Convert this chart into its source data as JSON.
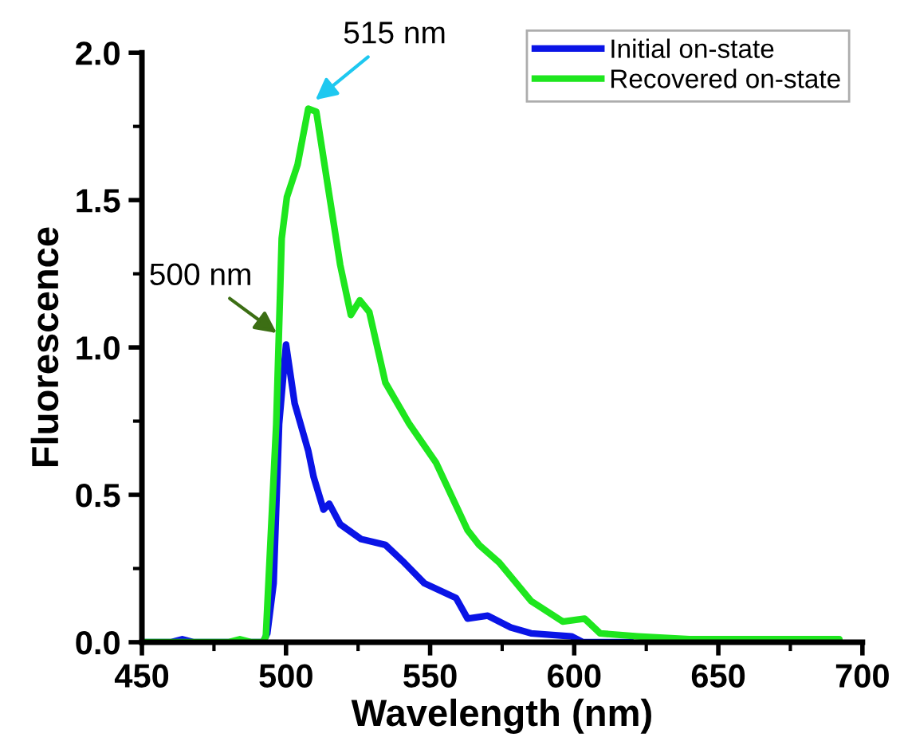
{
  "chart_data": {
    "type": "line",
    "xlabel": "Wavelength (nm)",
    "ylabel": "Fluorescence",
    "xlim": [
      450,
      700
    ],
    "ylim": [
      0,
      2.0
    ],
    "xticks": [
      450,
      500,
      550,
      600,
      650,
      700
    ],
    "yticks": [
      {
        "value": 0,
        "label": "0.0"
      },
      {
        "value": 0.5,
        "label": "0.5"
      },
      {
        "value": 1.0,
        "label": "1.0"
      },
      {
        "value": 1.5,
        "label": "1.5"
      },
      {
        "value": 2.0,
        "label": "2.0"
      }
    ],
    "grid": false,
    "legend": "top right",
    "marker": "none",
    "line_style": "solid",
    "annotations": [
      {
        "text": "515 nm",
        "x": 509,
        "y": 1.83
      },
      {
        "text": "500 nm",
        "x": 498,
        "y": 1.04
      }
    ],
    "series": [
      {
        "name": "Initial on-state",
        "color": "#0a14e6",
        "x": [
          450,
          460,
          464,
          468,
          480,
          492,
          493.5,
          495.7,
          497.6,
          500,
          503,
          507.7,
          509.6,
          513,
          515,
          518.8,
          526,
          534.5,
          541,
          548,
          559,
          563,
          570,
          578,
          585,
          599,
          603,
          620
        ],
        "values": [
          0,
          0,
          0.01,
          0,
          0,
          0,
          0.03,
          0.2,
          0.74,
          1.01,
          0.81,
          0.65,
          0.56,
          0.45,
          0.47,
          0.4,
          0.35,
          0.33,
          0.27,
          0.2,
          0.15,
          0.08,
          0.09,
          0.05,
          0.03,
          0.02,
          0,
          0
        ]
      },
      {
        "name": "Recovered on-state",
        "color": "#1ee61e",
        "x": [
          450,
          480,
          484,
          488,
          492,
          493,
          496.6,
          498.5,
          500.3,
          504,
          507.7,
          510.5,
          514,
          518.8,
          522.5,
          525.6,
          528.9,
          534.5,
          542.8,
          552,
          563,
          567,
          574,
          585,
          596,
          603.6,
          609,
          622,
          640,
          660,
          680,
          692
        ],
        "values": [
          0,
          0,
          0.01,
          0,
          0,
          0.02,
          0.74,
          1.37,
          1.51,
          1.62,
          1.81,
          1.8,
          1.58,
          1.28,
          1.11,
          1.16,
          1.12,
          0.88,
          0.74,
          0.61,
          0.38,
          0.33,
          0.27,
          0.14,
          0.07,
          0.08,
          0.03,
          0.02,
          0.01,
          0.01,
          0.01,
          0.01
        ]
      }
    ]
  }
}
